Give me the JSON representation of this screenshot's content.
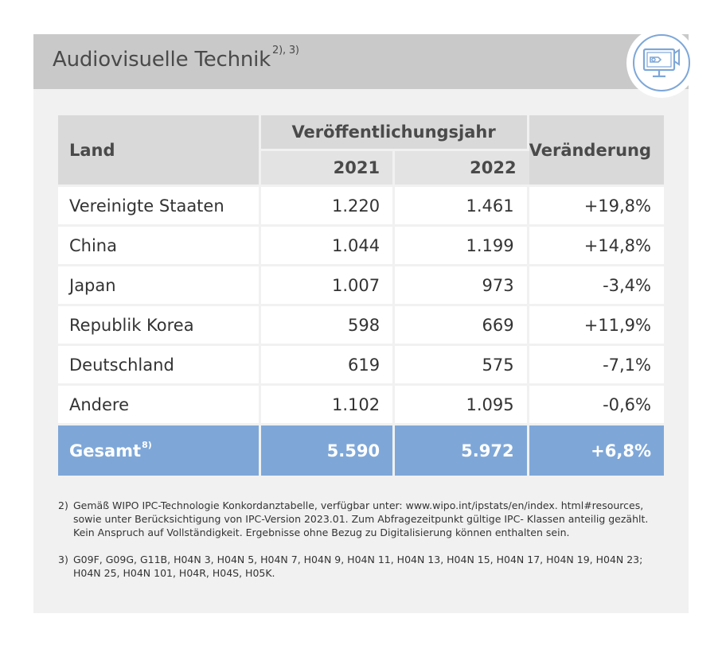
{
  "header": {
    "title": "Audiovisuelle Technik",
    "title_sup": "2), 3)",
    "icon": "audiovisual-monitor-icon"
  },
  "chart_data": {
    "type": "table",
    "columns": {
      "land": "Land",
      "group": "Veröffentlichungsjahr",
      "years": [
        "2021",
        "2022"
      ],
      "change": "Veränderung"
    },
    "rows": [
      {
        "land": "Vereinigte Staaten",
        "y2021": "1.220",
        "y2022": "1.461",
        "change": "+19,8%"
      },
      {
        "land": "China",
        "y2021": "1.044",
        "y2022": "1.199",
        "change": "+14,8%"
      },
      {
        "land": "Japan",
        "y2021": "1.007",
        "y2022": "973",
        "change": "-3,4%"
      },
      {
        "land": "Republik Korea",
        "y2021": "598",
        "y2022": "669",
        "change": "+11,9%"
      },
      {
        "land": "Deutschland",
        "y2021": "619",
        "y2022": "575",
        "change": "-7,1%"
      },
      {
        "land": "Andere",
        "y2021": "1.102",
        "y2022": "1.095",
        "change": "-0,6%"
      }
    ],
    "total": {
      "land": "Gesamt",
      "sup": "8)",
      "y2021": "5.590",
      "y2022": "5.972",
      "change": "+6,8%"
    }
  },
  "footnotes": [
    {
      "num": "2)",
      "text": "Gemäß WIPO IPC-Technologie Konkordanztabelle, verfügbar unter: www.wipo.int/ipstats/en/index. html#resources, sowie unter Berücksichtigung von IPC-Version 2023.01. Zum Abfragezeitpunkt gültige IPC- Klassen anteilig gezählt. Kein Anspruch auf Vollständigkeit. Ergebnisse ohne Bezug zu Digitalisierung können enthalten sein."
    },
    {
      "num": "3)",
      "text": "G09F, G09G, G11B, H04N 3, H04N 5, H04N 7, H04N 9, H04N 11, H04N 13, H04N 15, H04N 17, H04N 19, H04N 23; H04N 25, H04N 101, H04R, H04S, H05K."
    }
  ],
  "colors": {
    "header_band": "#c9c9c9",
    "card_bg": "#f1f1f1",
    "accent_blue": "#7ea7d8",
    "table_header": "#d9d9d9"
  }
}
